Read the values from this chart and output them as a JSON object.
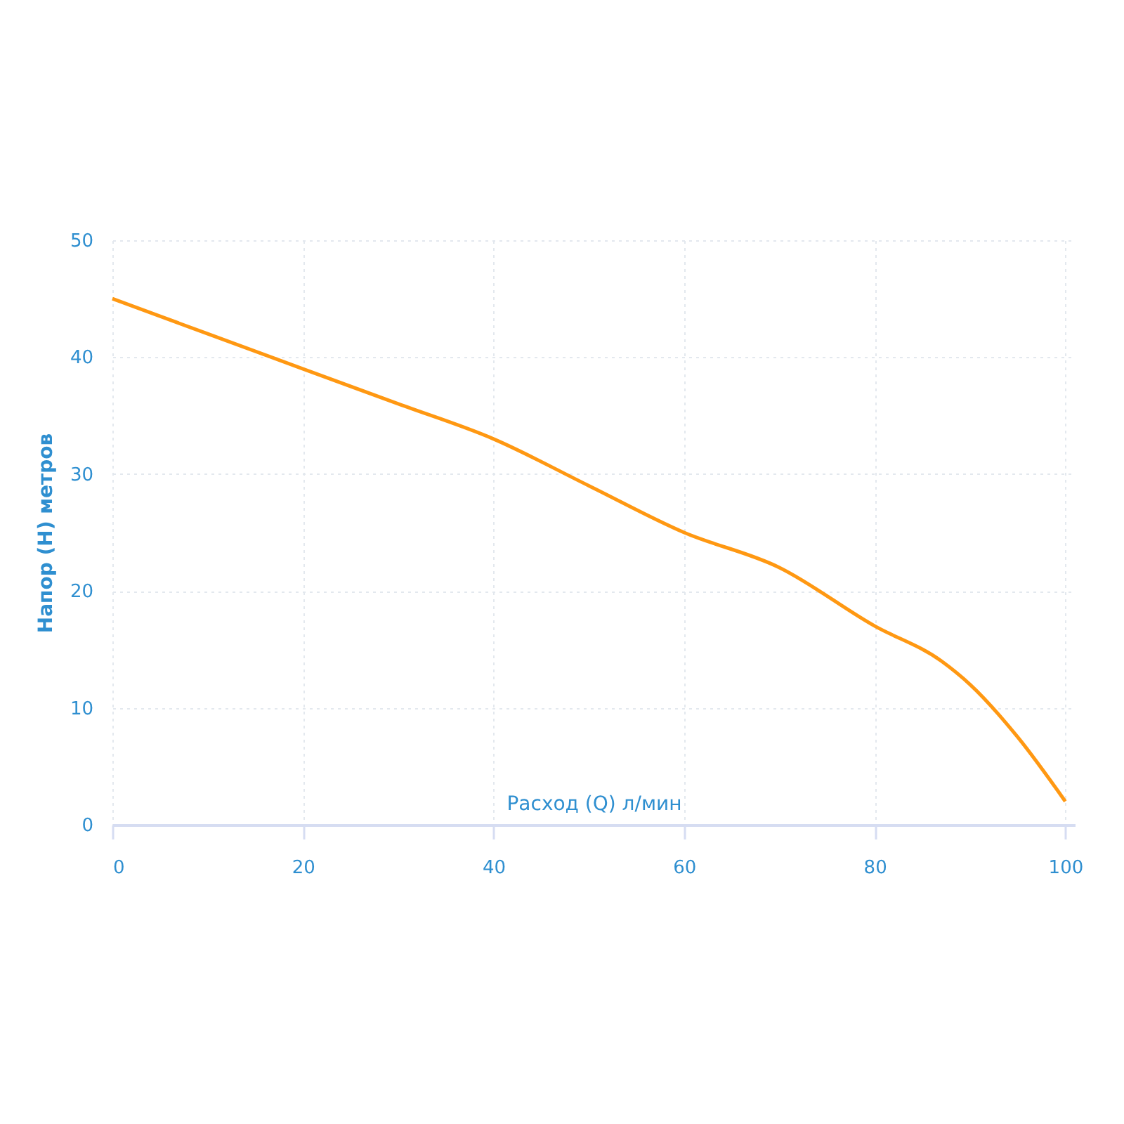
{
  "chart_data": {
    "type": "line",
    "xlabel": "Расход (Q) л/мин",
    "ylabel": "Напор (H) метров",
    "x": [
      0,
      10,
      20,
      30,
      40,
      50,
      60,
      70,
      80,
      87,
      90,
      95,
      100
    ],
    "series": [
      {
        "color": "#ff9812",
        "values": [
          45,
          42,
          39,
          36,
          33,
          29,
          25,
          22,
          17,
          14,
          12,
          7.5,
          2
        ]
      }
    ],
    "xlim": [
      0,
      101
    ],
    "xticks": [
      0,
      20,
      40,
      60,
      80,
      100
    ],
    "ylim": [
      0,
      50
    ],
    "yticks": [
      0,
      10,
      20,
      30,
      40,
      50
    ],
    "grid": true,
    "marker": "none",
    "line_style": "solid"
  }
}
